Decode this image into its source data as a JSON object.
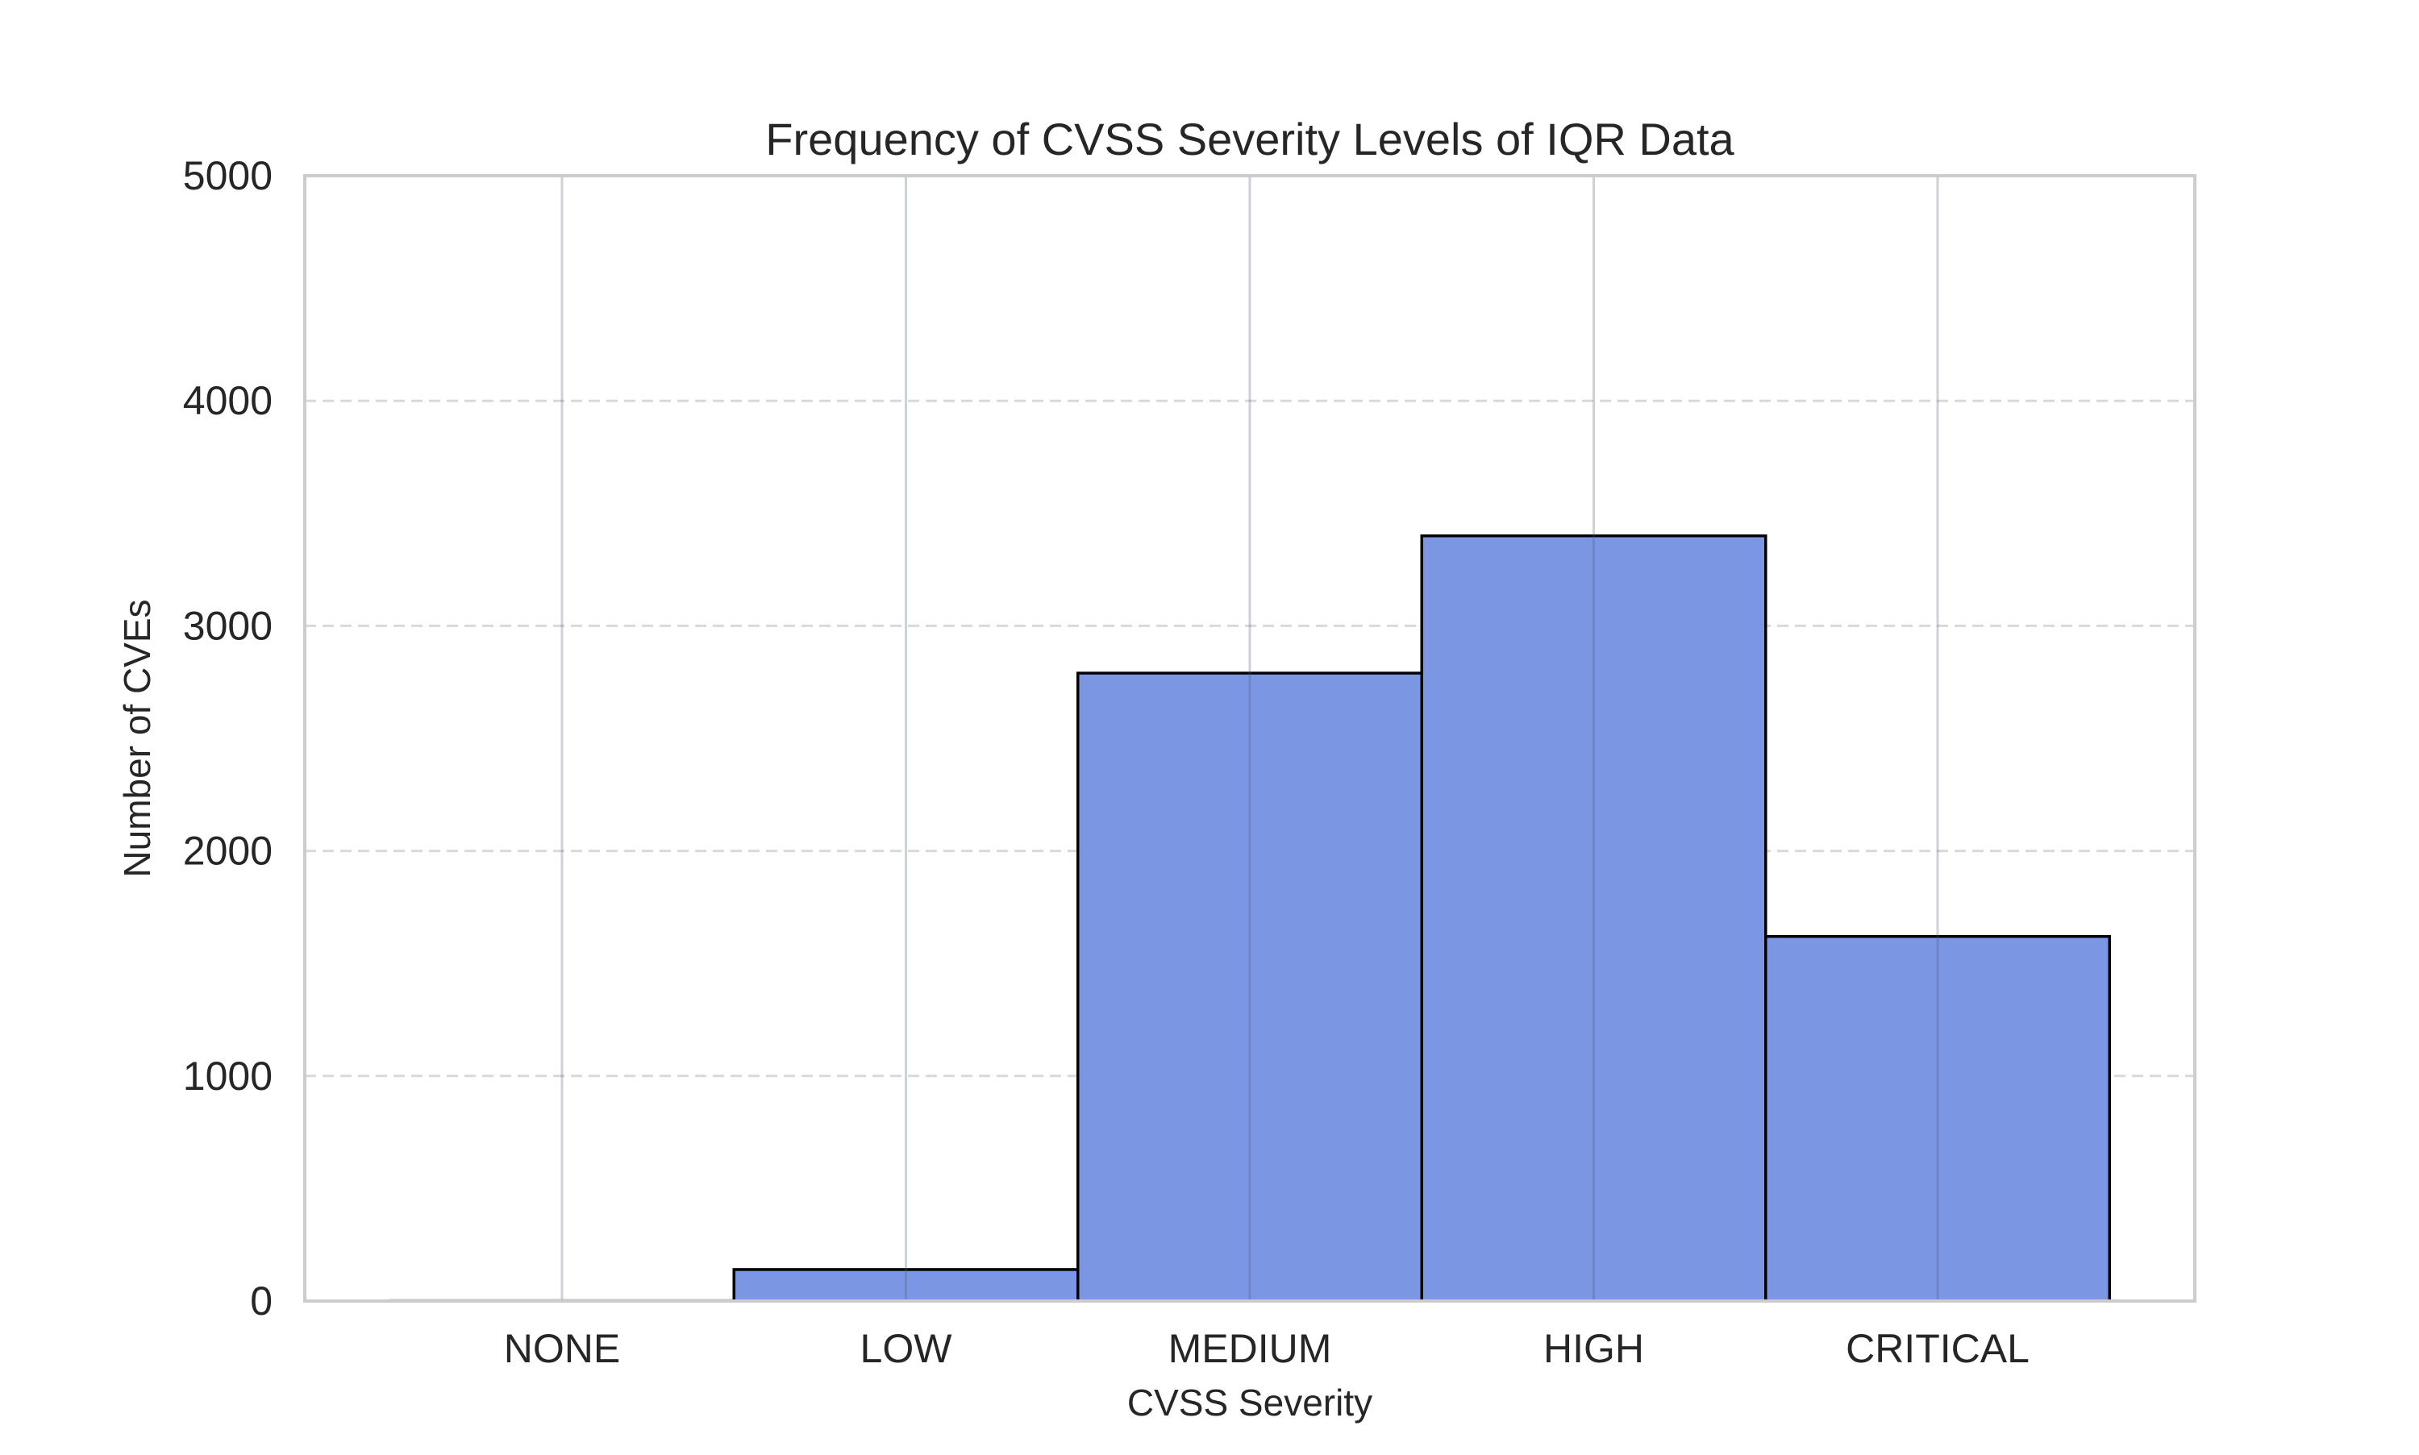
{
  "chart_data": {
    "type": "bar",
    "title": "Frequency of CVSS Severity Levels of IQR Data",
    "xlabel": "CVSS Severity",
    "ylabel": "Number of CVEs",
    "categories": [
      "NONE",
      "LOW",
      "MEDIUM",
      "HIGH",
      "CRITICAL"
    ],
    "values": [
      5,
      140,
      2790,
      3400,
      1620
    ],
    "ylim": [
      0,
      5000
    ],
    "yticks": [
      0,
      1000,
      2000,
      3000,
      4000,
      5000
    ],
    "grid": {
      "x": "solid",
      "y": "dashed"
    },
    "bar_color": "#7b96e3",
    "bar_edge_color": "#000000",
    "legend": "none"
  }
}
